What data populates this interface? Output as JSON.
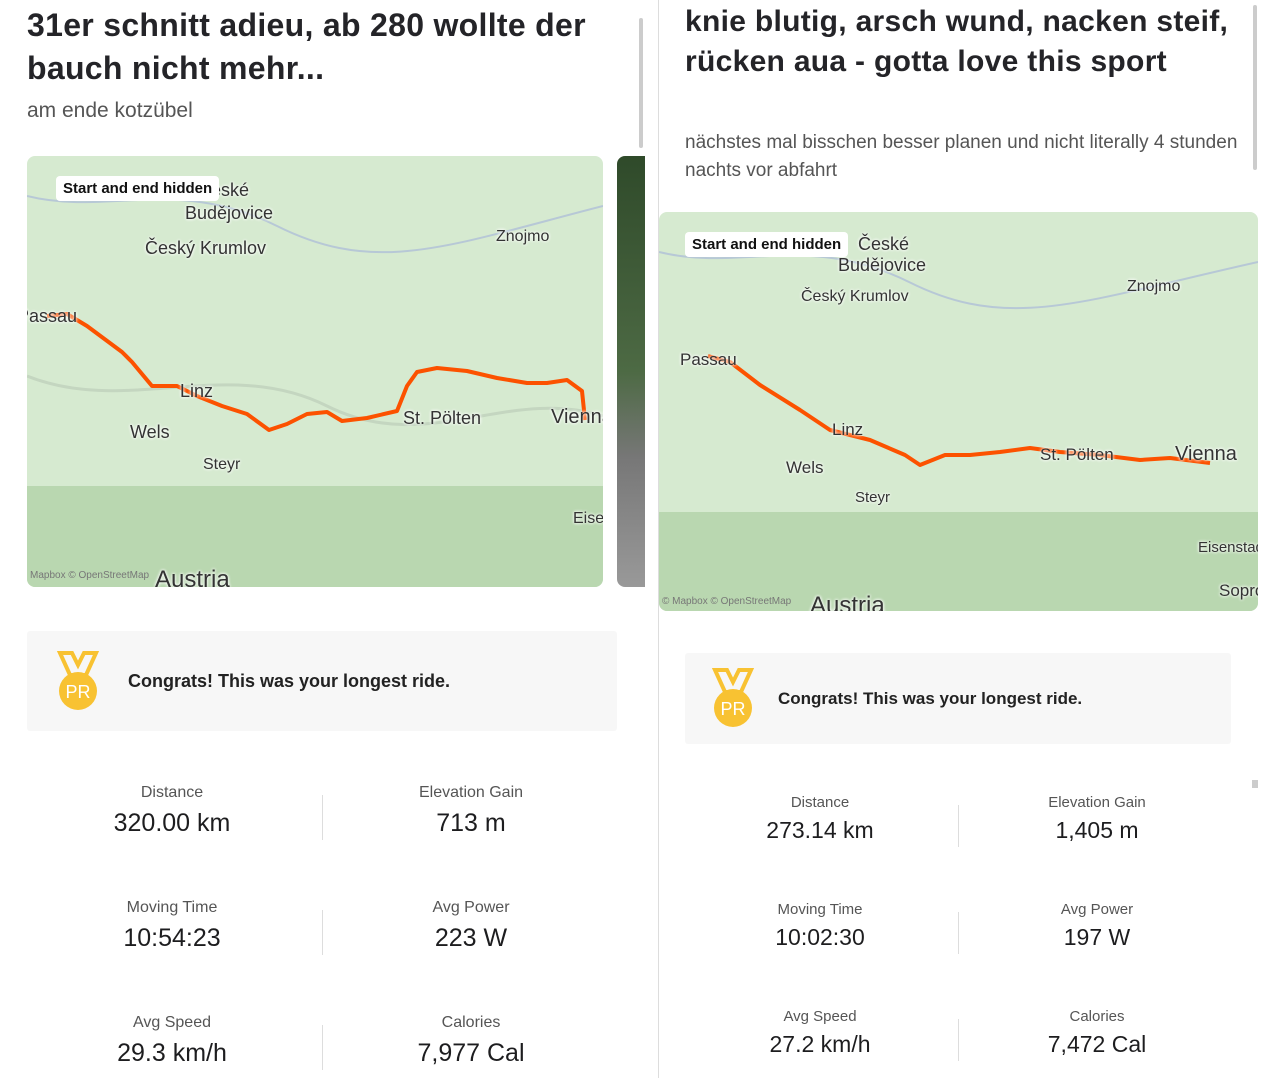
{
  "panels": [
    {
      "title": "31er schnitt adieu, ab 280 wollte der bauch nicht mehr...",
      "description": "am ende kotzübel",
      "map": {
        "badge": "Start and end hidden",
        "labels": [
          "České",
          "Budějovice",
          "Český Krumlov",
          "Znojmo",
          "Passau",
          "Linz",
          "Wels",
          "Steyr",
          "St. Pölten",
          "Vienna",
          "Eisenstadt",
          "Austria"
        ],
        "attribution": "Mapbox © OpenStreetMap"
      },
      "medal": "PR",
      "achievement": "Congrats! This was your longest ride.",
      "stats": [
        {
          "label": "Distance",
          "value": "320.00 km"
        },
        {
          "label": "Elevation Gain",
          "value": "713 m"
        },
        {
          "label": "Moving Time",
          "value": "10:54:23"
        },
        {
          "label": "Avg Power",
          "value": "223 W"
        },
        {
          "label": "Avg Speed",
          "value": "29.3 km/h"
        },
        {
          "label": "Calories",
          "value": "7,977 Cal"
        }
      ]
    },
    {
      "title": "knie blutig, arsch wund, nacken steif, rücken aua - gotta love this sport",
      "description": "nächstes mal bisschen besser planen und nicht literally 4 stunden nachts vor abfahrt",
      "map": {
        "badge": "Start and end hidden",
        "labels": [
          "České",
          "Budějovice",
          "Český Krumlov",
          "Znojmo",
          "Passau",
          "Linz",
          "Wels",
          "Steyr",
          "St. Pölten",
          "Vienna",
          "Eisenstadt",
          "Austria",
          "Sopron"
        ],
        "attribution": "© Mapbox © OpenStreetMap"
      },
      "medal": "PR",
      "achievement": "Congrats! This was your longest ride.",
      "stats": [
        {
          "label": "Distance",
          "value": "273.14 km"
        },
        {
          "label": "Elevation Gain",
          "value": "1,405 m"
        },
        {
          "label": "Moving Time",
          "value": "10:02:30"
        },
        {
          "label": "Avg Power",
          "value": "197 W"
        },
        {
          "label": "Avg Speed",
          "value": "27.2 km/h"
        },
        {
          "label": "Calories",
          "value": "7,472 Cal"
        }
      ]
    }
  ]
}
